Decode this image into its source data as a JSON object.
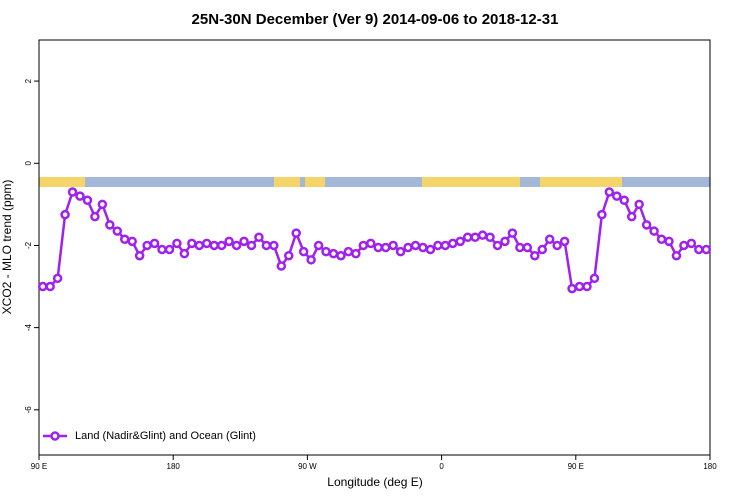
{
  "chart_data": {
    "type": "line",
    "title": "25N-30N December (Ver 9)   2014-09-06 to 2018-12-31",
    "x_label": "Longitude (deg E)",
    "y_label": "XCO2 - MLO trend (ppm)",
    "legend": "bottom-left",
    "xlim": [
      90,
      540
    ],
    "ylim": [
      -7.1,
      3
    ],
    "xticks": [
      {
        "value": 90,
        "label": "90 E"
      },
      {
        "value": 180,
        "label": "180"
      },
      {
        "value": 270,
        "label": "90 W"
      },
      {
        "value": 360,
        "label": "0"
      },
      {
        "value": 450,
        "label": "90 E"
      },
      {
        "value": 540,
        "label": "180"
      }
    ],
    "yticks": [
      2,
      0,
      -2,
      -4,
      -6
    ],
    "x": [
      92.5,
      97.5,
      102.5,
      107.5,
      112.5,
      117.5,
      122.5,
      127.5,
      132.5,
      137.5,
      142.5,
      147.5,
      152.5,
      157.5,
      162.5,
      167.5,
      172.5,
      177.5,
      182.5,
      187.5,
      192.5,
      197.5,
      202.5,
      207.5,
      212.5,
      217.5,
      222.5,
      227.5,
      232.5,
      237.5,
      242.5,
      247.5,
      252.5,
      257.5,
      262.5,
      267.5,
      272.5,
      277.5,
      282.5,
      287.5,
      292.5,
      297.5,
      302.5,
      307.5,
      312.5,
      317.5,
      322.5,
      327.5,
      332.5,
      337.5,
      342.5,
      347.5,
      352.5,
      357.5,
      362.5,
      367.5,
      372.5,
      377.5,
      382.5,
      387.5,
      392.5,
      397.5,
      402.5,
      407.5,
      412.5,
      417.5,
      422.5,
      427.5,
      432.5,
      437.5,
      442.5,
      447.5,
      452.5,
      457.5,
      462.5,
      467.5,
      472.5,
      477.5,
      482.5,
      487.5,
      492.5,
      497.5,
      502.5,
      507.5,
      512.5,
      517.5,
      522.5,
      527.5,
      532.5,
      537.5
    ],
    "series": [
      {
        "name": "Land (Nadir&Glint) and Ocean (Glint)",
        "color": "#a020f0",
        "values": [
          -3.0,
          -3.0,
          -2.8,
          -1.25,
          -0.7,
          -0.8,
          -0.9,
          -1.3,
          -1.0,
          -1.5,
          -1.65,
          -1.85,
          -1.9,
          -2.25,
          -2.0,
          -1.95,
          -2.1,
          -2.1,
          -1.95,
          -2.2,
          -1.95,
          -2.0,
          -1.95,
          -2.0,
          -2.0,
          -1.9,
          -2.0,
          -1.9,
          -2.0,
          -1.8,
          -2.0,
          -2.0,
          -2.5,
          -2.25,
          -1.7,
          -2.15,
          -2.35,
          -2.0,
          -2.15,
          -2.2,
          -2.25,
          -2.15,
          -2.2,
          -2.0,
          -1.95,
          -2.05,
          -2.05,
          -2.0,
          -2.15,
          -2.05,
          -2.0,
          -2.05,
          -2.1,
          -2.0,
          -2.0,
          -1.95,
          -1.9,
          -1.8,
          -1.8,
          -1.75,
          -1.8,
          -2.0,
          -1.9,
          -1.7,
          -2.05,
          -2.05,
          -2.25,
          -2.1,
          -1.85,
          -2.0,
          -1.9,
          -3.05,
          -3.0,
          -3.0,
          -2.8,
          -1.25,
          -0.7,
          -0.8,
          -0.9,
          -1.3,
          -1.0,
          -1.5,
          -1.65,
          -1.85,
          -1.9,
          -2.25,
          -2.0,
          -1.95,
          -2.1,
          -2.1
        ]
      }
    ]
  }
}
